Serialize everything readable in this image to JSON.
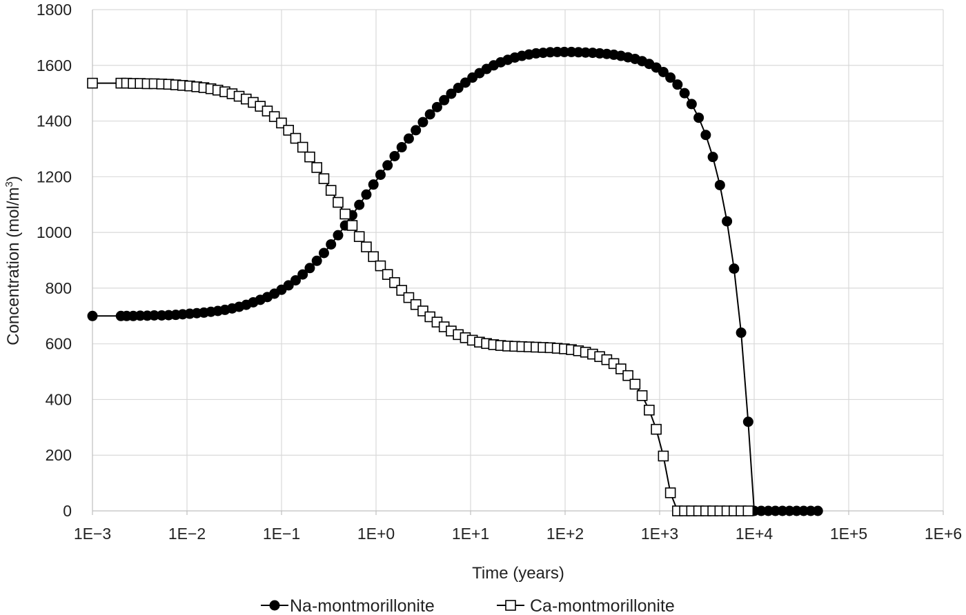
{
  "chart_data": {
    "type": "line",
    "xlabel": "Time (years)",
    "ylabel": "Concentration (mol/m",
    "ylabel_sup": "3",
    "ylabel_close": ")",
    "xscale": "log",
    "xlim": [
      0.001,
      1000000
    ],
    "ylim": [
      0,
      1800
    ],
    "x_ticks": [
      "1E−3",
      "1E−2",
      "1E−1",
      "1E+0",
      "1E+1",
      "1E+2",
      "1E+3",
      "1E+4",
      "1E+5",
      "1E+6"
    ],
    "y_ticks": [
      "0",
      "200",
      "400",
      "600",
      "800",
      "1000",
      "1200",
      "1400",
      "1600",
      "1800"
    ],
    "grid": "on",
    "legend_position": "bottom",
    "series": [
      {
        "name": "Na-montmorillonite",
        "marker": "filled-circle",
        "color": "#000000",
        "points": [
          [
            0.001,
            700
          ],
          [
            0.002,
            700
          ],
          [
            0.0023,
            700
          ],
          [
            0.0027,
            700
          ],
          [
            0.0032,
            701
          ],
          [
            0.0038,
            701
          ],
          [
            0.0045,
            702
          ],
          [
            0.0054,
            702
          ],
          [
            0.0064,
            703
          ],
          [
            0.0076,
            704
          ],
          [
            0.009,
            706
          ],
          [
            0.0107,
            708
          ],
          [
            0.0127,
            710
          ],
          [
            0.0151,
            712
          ],
          [
            0.0179,
            715
          ],
          [
            0.0212,
            718
          ],
          [
            0.0252,
            722
          ],
          [
            0.03,
            727
          ],
          [
            0.0356,
            733
          ],
          [
            0.0423,
            740
          ],
          [
            0.0502,
            749
          ],
          [
            0.0596,
            758
          ],
          [
            0.0708,
            768
          ],
          [
            0.0841,
            780
          ],
          [
            0.0999,
            794
          ],
          [
            0.1187,
            810
          ],
          [
            0.141,
            828
          ],
          [
            0.1675,
            849
          ],
          [
            0.199,
            872
          ],
          [
            0.2364,
            898
          ],
          [
            0.2809,
            926
          ],
          [
            0.3337,
            957
          ],
          [
            0.3964,
            990
          ],
          [
            0.4709,
            1025
          ],
          [
            0.5594,
            1062
          ],
          [
            0.6646,
            1099
          ],
          [
            0.7895,
            1136
          ],
          [
            0.9379,
            1172
          ],
          [
            1.1142,
            1207
          ],
          [
            1.3236,
            1241
          ],
          [
            1.5724,
            1274
          ],
          [
            1.868,
            1306
          ],
          [
            2.2191,
            1337
          ],
          [
            2.6362,
            1367
          ],
          [
            3.1317,
            1396
          ],
          [
            3.7204,
            1424
          ],
          [
            4.4197,
            1450
          ],
          [
            5.2505,
            1475
          ],
          [
            6.2374,
            1498
          ],
          [
            7.4098,
            1519
          ],
          [
            8.8026,
            1538
          ],
          [
            10.457,
            1556
          ],
          [
            12.423,
            1572
          ],
          [
            14.758,
            1587
          ],
          [
            17.532,
            1600
          ],
          [
            20.827,
            1611
          ],
          [
            24.742,
            1620
          ],
          [
            29.393,
            1628
          ],
          [
            34.918,
            1634
          ],
          [
            41.481,
            1639
          ],
          [
            49.278,
            1643
          ],
          [
            58.541,
            1645
          ],
          [
            69.545,
            1647
          ],
          [
            82.617,
            1648
          ],
          [
            98.146,
            1648
          ],
          [
            116.6,
            1648
          ],
          [
            138.5,
            1647
          ],
          [
            164.6,
            1646
          ],
          [
            195.5,
            1645
          ],
          [
            232.2,
            1643
          ],
          [
            275.9,
            1641
          ],
          [
            327.7,
            1638
          ],
          [
            389.3,
            1634
          ],
          [
            462.5,
            1629
          ],
          [
            549.4,
            1623
          ],
          [
            652.7,
            1615
          ],
          [
            775.4,
            1605
          ],
          [
            921.1,
            1592
          ],
          [
            1094.3,
            1576
          ],
          [
            1300,
            1556
          ],
          [
            1544.3,
            1531
          ],
          [
            1834.6,
            1500
          ],
          [
            2179.5,
            1461
          ],
          [
            2589.1,
            1412
          ],
          [
            3075.8,
            1350
          ],
          [
            3654,
            1271
          ],
          [
            4340.8,
            1170
          ],
          [
            5156.8,
            1040
          ],
          [
            6126.2,
            870
          ],
          [
            7277.7,
            640
          ],
          [
            8645.7,
            320
          ],
          [
            10000,
            0
          ],
          [
            11882,
            0
          ],
          [
            14116,
            0
          ],
          [
            16769,
            0
          ],
          [
            19921,
            0
          ],
          [
            23666,
            0
          ],
          [
            28114,
            0
          ],
          [
            33399,
            0
          ],
          [
            39677,
            0
          ],
          [
            47135,
            0
          ]
        ]
      },
      {
        "name": "Ca-montmorillonite",
        "marker": "open-square",
        "color": "#000000",
        "points": [
          [
            0.001,
            1536
          ],
          [
            0.002,
            1536
          ],
          [
            0.0023,
            1536
          ],
          [
            0.0027,
            1535
          ],
          [
            0.0032,
            1535
          ],
          [
            0.0038,
            1534
          ],
          [
            0.0045,
            1534
          ],
          [
            0.0054,
            1533
          ],
          [
            0.0064,
            1532
          ],
          [
            0.0076,
            1530
          ],
          [
            0.009,
            1528
          ],
          [
            0.0107,
            1526
          ],
          [
            0.0127,
            1523
          ],
          [
            0.0151,
            1520
          ],
          [
            0.0179,
            1516
          ],
          [
            0.0212,
            1511
          ],
          [
            0.0252,
            1505
          ],
          [
            0.03,
            1498
          ],
          [
            0.0356,
            1489
          ],
          [
            0.0423,
            1479
          ],
          [
            0.0502,
            1467
          ],
          [
            0.0596,
            1453
          ],
          [
            0.0708,
            1436
          ],
          [
            0.0841,
            1416
          ],
          [
            0.0999,
            1393
          ],
          [
            0.1187,
            1367
          ],
          [
            0.141,
            1338
          ],
          [
            0.1675,
            1306
          ],
          [
            0.199,
            1271
          ],
          [
            0.2364,
            1233
          ],
          [
            0.2809,
            1193
          ],
          [
            0.3337,
            1151
          ],
          [
            0.3964,
            1108
          ],
          [
            0.4709,
            1066
          ],
          [
            0.5594,
            1025
          ],
          [
            0.6646,
            985
          ],
          [
            0.7895,
            948
          ],
          [
            0.9379,
            913
          ],
          [
            1.1142,
            880
          ],
          [
            1.3236,
            849
          ],
          [
            1.5724,
            820
          ],
          [
            1.868,
            792
          ],
          [
            2.2191,
            766
          ],
          [
            2.6362,
            741
          ],
          [
            3.1317,
            718
          ],
          [
            3.7204,
            697
          ],
          [
            4.4197,
            678
          ],
          [
            5.2505,
            661
          ],
          [
            6.2374,
            646
          ],
          [
            7.4098,
            633
          ],
          [
            8.8026,
            622
          ],
          [
            10.457,
            613
          ],
          [
            12.423,
            606
          ],
          [
            14.758,
            601
          ],
          [
            17.532,
            597
          ],
          [
            20.827,
            594
          ],
          [
            24.742,
            592
          ],
          [
            29.393,
            591
          ],
          [
            34.918,
            590
          ],
          [
            41.481,
            589
          ],
          [
            49.278,
            588
          ],
          [
            58.541,
            587
          ],
          [
            69.545,
            586
          ],
          [
            82.617,
            584
          ],
          [
            98.146,
            582
          ],
          [
            116.6,
            579
          ],
          [
            138.5,
            575
          ],
          [
            164.6,
            570
          ],
          [
            195.5,
            563
          ],
          [
            232.2,
            554
          ],
          [
            275.9,
            543
          ],
          [
            327.7,
            529
          ],
          [
            389.3,
            510
          ],
          [
            462.5,
            486
          ],
          [
            549.4,
            455
          ],
          [
            652.7,
            414
          ],
          [
            775.4,
            362
          ],
          [
            921.1,
            293
          ],
          [
            1094.3,
            197
          ],
          [
            1300,
            65
          ],
          [
            1544.3,
            0
          ],
          [
            1834.6,
            0
          ],
          [
            2179.5,
            0
          ],
          [
            2589.1,
            0
          ],
          [
            3075.8,
            0
          ],
          [
            3654,
            0
          ],
          [
            4340.8,
            0
          ],
          [
            5156.8,
            0
          ],
          [
            6126.2,
            0
          ],
          [
            7277.7,
            0
          ],
          [
            8645.7,
            0
          ]
        ]
      }
    ]
  }
}
